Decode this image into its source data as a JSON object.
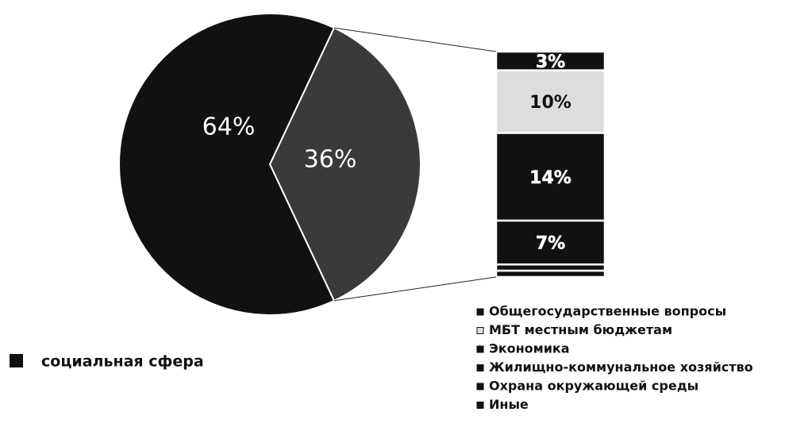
{
  "chart_data": {
    "type": "pie",
    "categories": [
      "социальная сфера",
      null
    ],
    "values": [
      64,
      36
    ],
    "value_labels": [
      "64%",
      "36%"
    ],
    "colors": [
      "#111111",
      "#3a3a3a"
    ],
    "bar": {
      "categories": [
        "Общегосударственные вопросы",
        "МБТ местным бюджетам",
        "Экономика",
        "Жилищно-коммунальное хозяйство",
        "Охрана окружающей среды",
        "Иные"
      ],
      "values": [
        3,
        10,
        14,
        7,
        1,
        1
      ],
      "value_labels": [
        "3%",
        "10%",
        "14%",
        "7%",
        null,
        null
      ],
      "colors": [
        "#111111",
        "#dddddd",
        "#111111",
        "#111111",
        "#111111",
        "#111111"
      ]
    }
  }
}
